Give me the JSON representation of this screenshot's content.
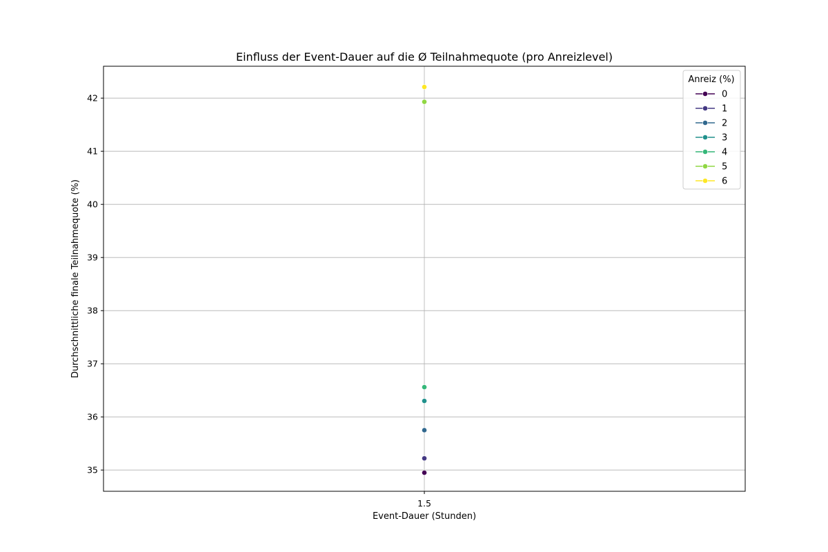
{
  "chart_data": {
    "type": "line",
    "title": "Einfluss der Event-Dauer auf die Ø Teilnahmequote (pro Anreizlevel)",
    "xlabel": "Event-Dauer (Stunden)",
    "ylabel": "Durchschnittliche finale Teilnahmequote (%)",
    "x_ticks": [
      "1.5"
    ],
    "y_ticks": [
      35,
      36,
      37,
      38,
      39,
      40,
      41,
      42
    ],
    "ylim": [
      34.6,
      42.6
    ],
    "grid": true,
    "legend": {
      "title": "Anreiz (%)",
      "placement": "top-right"
    },
    "series": [
      {
        "name": "0",
        "color": "#440154",
        "x": [
          1.5
        ],
        "y": [
          34.95
        ]
      },
      {
        "name": "1",
        "color": "#443983",
        "x": [
          1.5
        ],
        "y": [
          35.22
        ]
      },
      {
        "name": "2",
        "color": "#31688e",
        "x": [
          1.5
        ],
        "y": [
          35.75
        ]
      },
      {
        "name": "3",
        "color": "#21918c",
        "x": [
          1.5
        ],
        "y": [
          36.3
        ]
      },
      {
        "name": "4",
        "color": "#35b779",
        "x": [
          1.5
        ],
        "y": [
          36.56
        ]
      },
      {
        "name": "5",
        "color": "#90d743",
        "x": [
          1.5
        ],
        "y": [
          41.93
        ]
      },
      {
        "name": "6",
        "color": "#fde725",
        "x": [
          1.5
        ],
        "y": [
          42.21
        ]
      }
    ]
  }
}
